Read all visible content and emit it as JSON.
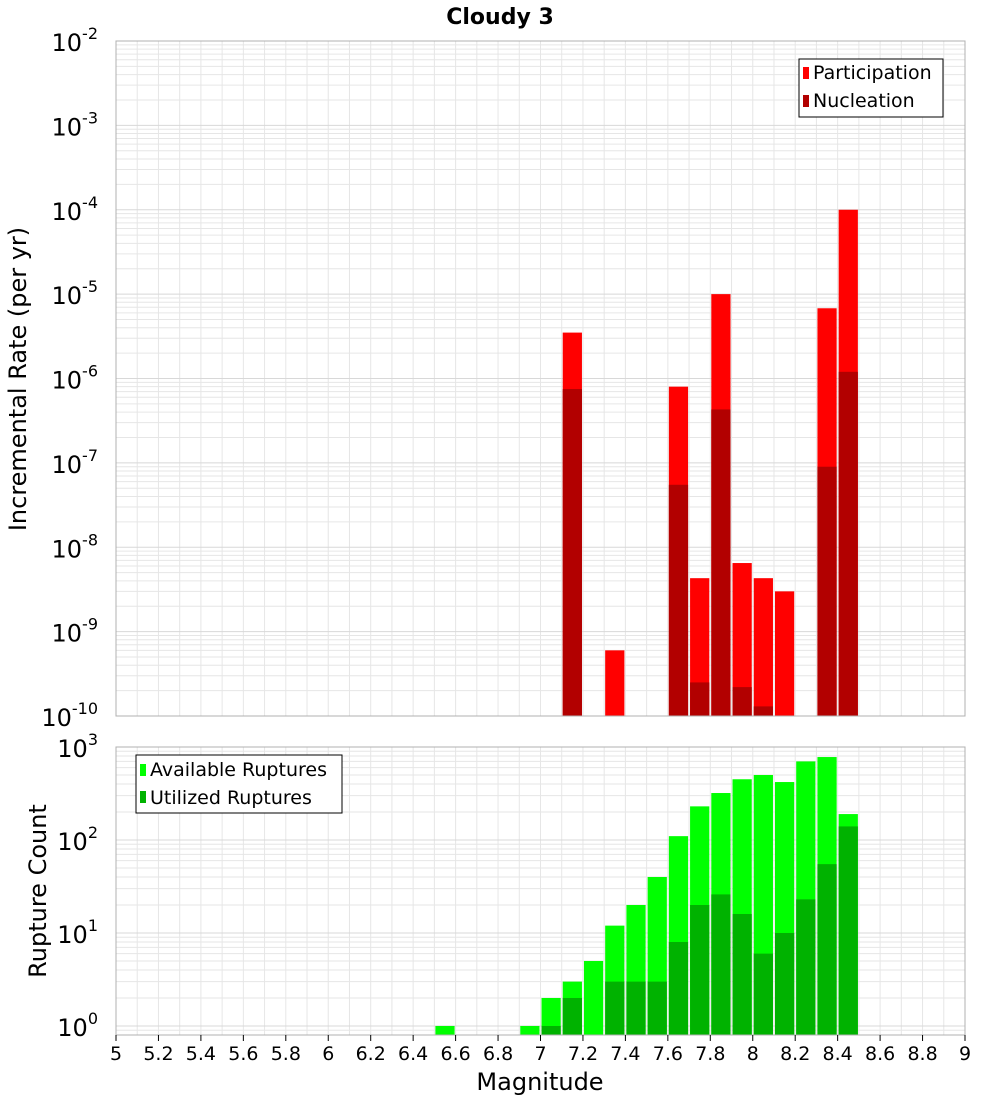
{
  "title": "Cloudy 3",
  "xlabel": "Magnitude",
  "x_ticks": [
    "5",
    "5.2",
    "5.4",
    "5.6",
    "5.8",
    "6",
    "6.2",
    "6.4",
    "6.6",
    "6.8",
    "7",
    "7.2",
    "7.4",
    "7.6",
    "7.8",
    "8",
    "8.2",
    "8.4",
    "8.6",
    "8.8",
    "9"
  ],
  "top_panel": {
    "ylabel": "Incremental Rate (per yr)",
    "y_ticks": [
      {
        "base": "10",
        "exp": "-10"
      },
      {
        "base": "10",
        "exp": "-9"
      },
      {
        "base": "10",
        "exp": "-8"
      },
      {
        "base": "10",
        "exp": "-7"
      },
      {
        "base": "10",
        "exp": "-6"
      },
      {
        "base": "10",
        "exp": "-5"
      },
      {
        "base": "10",
        "exp": "-4"
      },
      {
        "base": "10",
        "exp": "-3"
      },
      {
        "base": "10",
        "exp": "-2"
      }
    ],
    "legend": [
      "Participation",
      "Nucleation"
    ]
  },
  "bottom_panel": {
    "ylabel": "Rupture Count",
    "y_ticks": [
      {
        "base": "10",
        "exp": "0"
      },
      {
        "base": "10",
        "exp": "1"
      },
      {
        "base": "10",
        "exp": "2"
      },
      {
        "base": "10",
        "exp": "3"
      }
    ],
    "legend": [
      "Available Ruptures",
      "Utilized Ruptures"
    ]
  },
  "colors": {
    "participation": "#ff0000",
    "nucleation": "#b20000",
    "available": "#00ff00",
    "utilized": "#00b200",
    "grid": "#e6e6e6",
    "axis": "#b0b0b0"
  },
  "chart_data": [
    {
      "type": "bar",
      "title": "Cloudy 3",
      "xlabel": "",
      "ylabel": "Incremental Rate (per yr)",
      "yscale": "log",
      "xlim": [
        5,
        9
      ],
      "ylim": [
        1e-10,
        0.01
      ],
      "bar_width": 0.1,
      "legend_position": "top-right",
      "grid": true,
      "series": [
        {
          "name": "Participation",
          "x": [
            7.15,
            7.35,
            7.65,
            7.75,
            7.85,
            7.95,
            8.05,
            8.15,
            8.35,
            8.45
          ],
          "values": [
            3.5e-06,
            6e-10,
            8e-07,
            4.3e-09,
            1e-05,
            6.5e-09,
            4.3e-09,
            3e-09,
            6.8e-06,
            0.0001
          ]
        },
        {
          "name": "Nucleation",
          "x": [
            7.15,
            7.65,
            7.75,
            7.85,
            7.95,
            8.05,
            8.35,
            8.45
          ],
          "values": [
            7.5e-07,
            5.5e-08,
            2.5e-10,
            4.3e-07,
            2.2e-10,
            1.3e-10,
            9e-08,
            1.2e-06
          ]
        }
      ]
    },
    {
      "type": "bar",
      "title": "",
      "xlabel": "Magnitude",
      "ylabel": "Rupture Count",
      "yscale": "log",
      "xlim": [
        5,
        9
      ],
      "ylim": [
        0.8,
        1000
      ],
      "bar_width": 0.1,
      "legend_position": "top-left",
      "grid": true,
      "series": [
        {
          "name": "Available Ruptures",
          "x": [
            6.55,
            6.95,
            7.05,
            7.15,
            7.25,
            7.35,
            7.45,
            7.55,
            7.65,
            7.75,
            7.85,
            7.95,
            8.05,
            8.15,
            8.25,
            8.35,
            8.45
          ],
          "values": [
            1,
            1,
            2,
            3,
            5,
            12,
            20,
            40,
            110,
            230,
            320,
            450,
            500,
            420,
            700,
            780,
            190
          ]
        },
        {
          "name": "Utilized Ruptures",
          "x": [
            7.05,
            7.15,
            7.35,
            7.45,
            7.55,
            7.65,
            7.75,
            7.85,
            7.95,
            8.05,
            8.15,
            8.25,
            8.35,
            8.45
          ],
          "values": [
            1,
            2,
            3,
            3,
            3,
            8,
            20,
            26,
            16,
            6,
            10,
            23,
            55,
            140
          ]
        }
      ]
    }
  ]
}
